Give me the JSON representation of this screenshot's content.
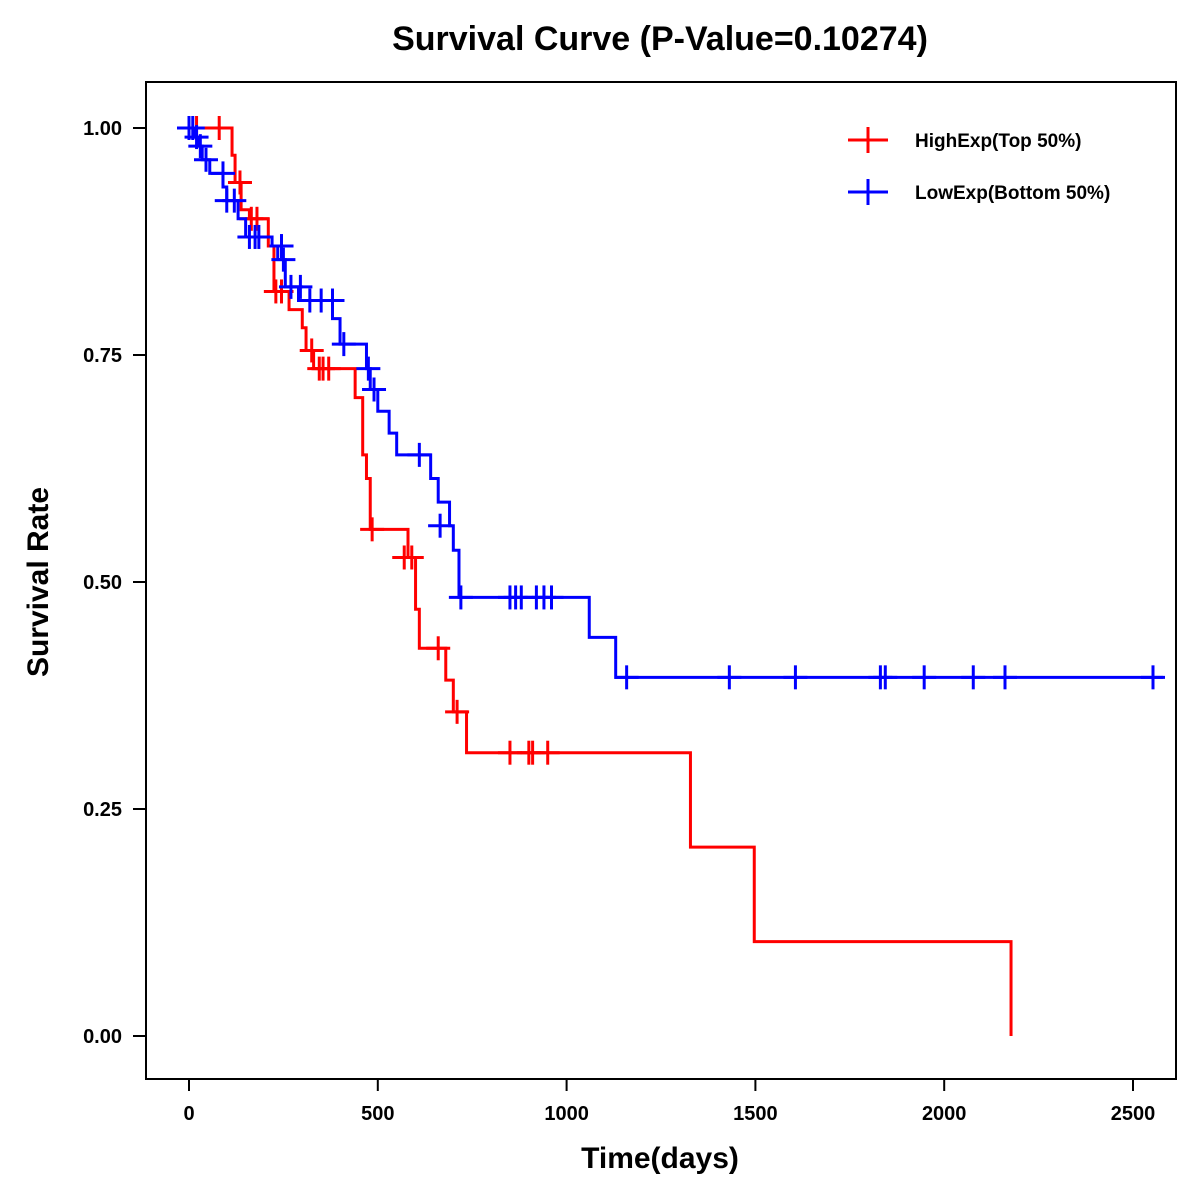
{
  "chart_data": {
    "type": "line",
    "subtype": "kaplan-meier step",
    "title": "Survival Curve (P-Value=0.10274)",
    "xlabel": "Time(days)",
    "ylabel": "Survival Rate",
    "xlim": [
      -110,
      2610
    ],
    "ylim": [
      -0.048,
      1.048
    ],
    "x_ticks": [
      0,
      500,
      1000,
      1500,
      2000,
      2500
    ],
    "x_tick_labels": [
      "0",
      "500",
      "1000",
      "1500",
      "2000",
      "2500"
    ],
    "y_ticks": [
      0.0,
      0.25,
      0.5,
      0.75,
      1.0
    ],
    "y_tick_labels": [
      "0.00",
      "0.25",
      "0.50",
      "0.75",
      "1.00"
    ],
    "grid": false,
    "legend": {
      "position": "top-right",
      "marker": "+"
    },
    "series": [
      {
        "name": "HighExp(Top 50%)",
        "color": "#FF0000",
        "steps": [
          [
            0,
            1.0
          ],
          [
            114,
            0.97
          ],
          [
            122,
            0.94
          ],
          [
            138,
            0.91
          ],
          [
            160,
            0.9
          ],
          [
            210,
            0.87
          ],
          [
            225,
            0.82
          ],
          [
            265,
            0.8
          ],
          [
            300,
            0.78
          ],
          [
            310,
            0.755
          ],
          [
            330,
            0.735
          ],
          [
            440,
            0.703
          ],
          [
            460,
            0.64
          ],
          [
            470,
            0.614
          ],
          [
            480,
            0.558
          ],
          [
            580,
            0.527
          ],
          [
            600,
            0.47
          ],
          [
            610,
            0.427
          ],
          [
            680,
            0.392
          ],
          [
            700,
            0.357
          ],
          [
            735,
            0.312
          ],
          [
            1328,
            0.208
          ],
          [
            1497,
            0.104
          ],
          [
            2177,
            0.0
          ]
        ],
        "end_time": 2177,
        "censored": [
          [
            20,
            1.0
          ],
          [
            80,
            1.0
          ],
          [
            135,
            0.94
          ],
          [
            165,
            0.9
          ],
          [
            180,
            0.9
          ],
          [
            230,
            0.82
          ],
          [
            245,
            0.82
          ],
          [
            325,
            0.755
          ],
          [
            345,
            0.735
          ],
          [
            355,
            0.735
          ],
          [
            370,
            0.735
          ],
          [
            485,
            0.558
          ],
          [
            570,
            0.527
          ],
          [
            590,
            0.527
          ],
          [
            660,
            0.427
          ],
          [
            710,
            0.357
          ],
          [
            850,
            0.312
          ],
          [
            900,
            0.312
          ],
          [
            910,
            0.312
          ],
          [
            950,
            0.312
          ]
        ]
      },
      {
        "name": "LowExp(Bottom 50%)",
        "color": "#0000FF",
        "steps": [
          [
            0,
            1.0
          ],
          [
            15,
            0.99
          ],
          [
            25,
            0.98
          ],
          [
            35,
            0.965
          ],
          [
            55,
            0.95
          ],
          [
            90,
            0.935
          ],
          [
            100,
            0.92
          ],
          [
            130,
            0.9
          ],
          [
            150,
            0.88
          ],
          [
            220,
            0.87
          ],
          [
            235,
            0.855
          ],
          [
            255,
            0.825
          ],
          [
            290,
            0.81
          ],
          [
            380,
            0.79
          ],
          [
            400,
            0.762
          ],
          [
            470,
            0.735
          ],
          [
            480,
            0.712
          ],
          [
            500,
            0.688
          ],
          [
            530,
            0.664
          ],
          [
            550,
            0.64
          ],
          [
            640,
            0.614
          ],
          [
            660,
            0.588
          ],
          [
            690,
            0.562
          ],
          [
            700,
            0.535
          ],
          [
            715,
            0.483
          ],
          [
            1060,
            0.439
          ],
          [
            1130,
            0.395
          ]
        ],
        "end_time": 2580,
        "censored": [
          [
            0,
            1.0
          ],
          [
            10,
            1.0
          ],
          [
            20,
            0.99
          ],
          [
            30,
            0.98
          ],
          [
            45,
            0.965
          ],
          [
            90,
            0.95
          ],
          [
            100,
            0.92
          ],
          [
            120,
            0.92
          ],
          [
            160,
            0.88
          ],
          [
            175,
            0.88
          ],
          [
            185,
            0.88
          ],
          [
            245,
            0.87
          ],
          [
            250,
            0.855
          ],
          [
            270,
            0.825
          ],
          [
            295,
            0.825
          ],
          [
            320,
            0.81
          ],
          [
            350,
            0.81
          ],
          [
            380,
            0.81
          ],
          [
            410,
            0.762
          ],
          [
            475,
            0.735
          ],
          [
            490,
            0.712
          ],
          [
            610,
            0.64
          ],
          [
            665,
            0.562
          ],
          [
            720,
            0.483
          ],
          [
            850,
            0.483
          ],
          [
            865,
            0.483
          ],
          [
            880,
            0.483
          ],
          [
            920,
            0.483
          ],
          [
            940,
            0.483
          ],
          [
            960,
            0.483
          ],
          [
            1159,
            0.395
          ],
          [
            1431,
            0.395
          ],
          [
            1606,
            0.395
          ],
          [
            1831,
            0.395
          ],
          [
            1844,
            0.395
          ],
          [
            1947,
            0.395
          ],
          [
            2077,
            0.395
          ],
          [
            2161,
            0.395
          ],
          [
            2553,
            0.395
          ]
        ]
      }
    ]
  }
}
